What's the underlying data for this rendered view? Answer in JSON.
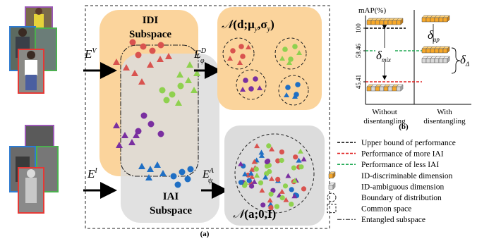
{
  "panel_a": {
    "caption": "(a)",
    "idi_title_line1": "IDI",
    "idi_title_line2": "Subspace",
    "iai_title_line1": "IAI",
    "iai_title_line2": "Subspace",
    "encoder_visible": "E^V",
    "encoder_infrared": "E^I",
    "head_d": "E_φ^D",
    "head_a": "E_ψ^A",
    "dist_d": "𝒩(d;μ_y,σ_y)",
    "dist_a": "𝒩(a;0,I)"
  },
  "panel_b": {
    "caption": "(b)",
    "y_axis_label": "mAP(%)",
    "ticks": [
      "100",
      "58.46",
      "45.41"
    ],
    "x_labels": [
      "Without disentangling",
      "With disentangling"
    ],
    "delta_up": "δ_up",
    "delta_mix": "δ_mix",
    "delta_diff": "δ_Δ"
  },
  "chart_data": {
    "type": "bar",
    "categories": [
      "Without disentangling",
      "With disentangling"
    ],
    "y_ticks": [
      100,
      58.46,
      45.41
    ],
    "ylabel": "mAP(%)",
    "reference_lines": [
      {
        "name": "Upper bound of performance",
        "value": 100,
        "color": "#000000"
      },
      {
        "name": "Performance of less IAI",
        "value": 58.46,
        "color": "#22aa55"
      },
      {
        "name": "Performance of more IAI",
        "value": 45.41,
        "color": "#e02020"
      }
    ]
  },
  "legend": [
    {
      "icon": "black-dash",
      "label": "Upper bound of performance"
    },
    {
      "icon": "red-dash",
      "label": "Performance of more IAI"
    },
    {
      "icon": "green-dash",
      "label": "Performance of less IAI"
    },
    {
      "icon": "orange-cube",
      "label": "ID-discriminable dimension"
    },
    {
      "icon": "gray-cube",
      "label": "ID-ambiguous dimension"
    },
    {
      "icon": "dashed-circle",
      "label": "Boundary of distribution"
    },
    {
      "icon": "dashed-square",
      "label": "Common space"
    },
    {
      "icon": "dashdot-line",
      "label": "Entangled subspace"
    }
  ],
  "colors": {
    "idi_region": "#fbd49c",
    "iai_region": "#dcdcdc",
    "red": "#d9534f",
    "green": "#8fd14f",
    "purple": "#7a2fa0",
    "blue": "#1f6fc4",
    "orange_cube": "#f7a82a"
  }
}
